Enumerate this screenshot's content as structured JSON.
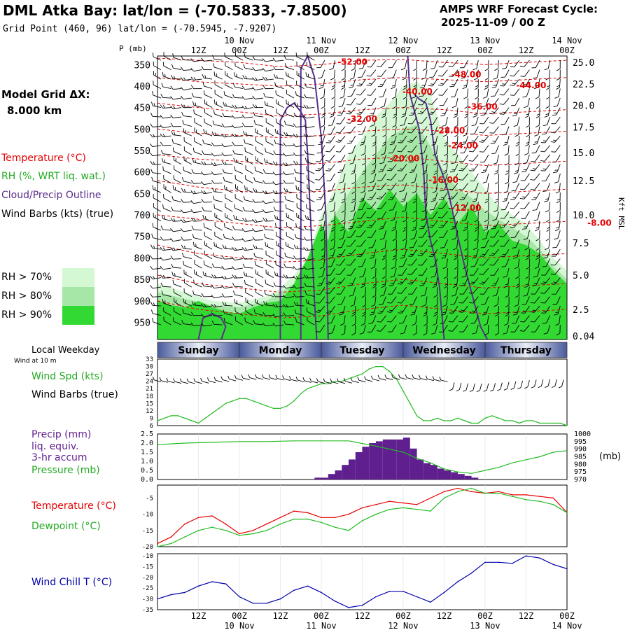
{
  "header": {
    "title": "DML Atka Bay:  lat/lon = (-70.5833, -7.8500)",
    "subtitle": "Grid Point (460, 96) lat/lon = (-70.5945, -7.9207)",
    "cycle_label": "AMPS WRF Forecast Cycle:",
    "cycle_value": "2025-11-09 / 00  Z"
  },
  "labels": {
    "grid_dx_title": "Model Grid ΔX:",
    "grid_dx_value": "8.000 km",
    "temperature": "Temperature (°C)",
    "rh": "RH (%, WRT liq. wat.)",
    "cloud": "Cloud/Precip Outline",
    "wind_barbs": "Wind Barbs (kts) (true)",
    "rh70": "RH > 70%",
    "rh80": "RH > 80%",
    "rh90": "RH > 90%",
    "p_unit": "P (mb)",
    "kft": "Kft MSL",
    "local_weekday": "Local Weekday",
    "wind_10m": "Wind at 10 m",
    "wind_spd": "Wind Spd (kts)",
    "wind_barbs_true": "Wind Barbs (true)",
    "precip1": "Precip (mm)",
    "precip2": "liq. equiv.",
    "precip3": "3-hr accum",
    "pressure": "Pressure (mb)",
    "mb_unit": "(mb)",
    "temp2": "Temperature (°C)",
    "dewpoint": "Dewpoint (°C)",
    "windchill": "Wind Chill T (°C)"
  },
  "colors": {
    "rh70": "#d4f7d4",
    "rh80": "#a6e6a6",
    "rh90": "#33d933",
    "temp": "#e60000",
    "cloud": "#5a2d8c",
    "precip": "#5f1f8f",
    "green_line": "#22bb22",
    "windchill": "#0000aa",
    "weekday_bar": "#4a5a9c"
  },
  "time_axis": {
    "top_dates": [
      "10 Nov",
      "11 Nov",
      "12 Nov",
      "13 Nov",
      "14 Nov"
    ],
    "hour_labels": [
      "12Z",
      "00Z",
      "12Z",
      "00Z",
      "12Z",
      "00Z",
      "12Z",
      "00Z",
      "12Z",
      "00Z"
    ]
  },
  "weekdays": [
    "Sunday",
    "Monday",
    "Tuesday",
    "Wednesday",
    "Thursday"
  ],
  "cross_section": {
    "pressure_ticks": [
      "350",
      "400",
      "450",
      "500",
      "550",
      "600",
      "650",
      "700",
      "750",
      "800",
      "850",
      "900",
      "950"
    ],
    "kft_ticks": [
      "25.0",
      "22.5",
      "20.0",
      "17.5",
      "15.0",
      "12.5",
      "10.0",
      "7.5",
      "5.0",
      "2.5",
      "0.04"
    ],
    "temp_labels": [
      "-52.00",
      "-48.00",
      "-44.00",
      "-40.00",
      "-36.00",
      "-32.00",
      "-28.00",
      "-24.00",
      "-20.00",
      "-16.00",
      "-12.00",
      "-8.00"
    ]
  },
  "chart_data": [
    {
      "type": "line",
      "title": "Wind Spd (kts)",
      "x_hours": [
        12,
        18,
        24,
        30,
        36,
        42,
        48,
        54,
        60,
        66,
        72,
        78,
        84,
        90,
        96,
        102,
        108,
        114,
        120
      ],
      "yticks": [
        "33",
        "30",
        "27",
        "24",
        "21",
        "18",
        "15",
        "12",
        "9",
        "6"
      ],
      "ylim": [
        6,
        33
      ],
      "series": [
        {
          "name": "Wind Spd (kts)",
          "x": [
            0,
            6,
            12,
            18,
            24,
            30,
            36,
            42,
            48,
            54,
            60,
            66,
            72,
            78,
            84,
            90,
            96,
            102,
            108,
            114,
            120,
            126,
            132,
            138,
            144,
            150,
            156,
            162,
            168,
            174,
            180,
            186,
            192,
            198,
            204,
            210,
            216,
            222,
            228,
            234,
            240,
            246,
            252,
            258,
            264,
            270,
            276,
            282,
            288,
            294,
            300,
            306,
            312,
            318,
            324,
            330,
            336,
            342,
            348,
            354,
            360
          ],
          "values": [
            8,
            9,
            10,
            10,
            9,
            8,
            7,
            9,
            11,
            13,
            15,
            16,
            17,
            17,
            16,
            15,
            14,
            13,
            13,
            14,
            16,
            19,
            21,
            22,
            23,
            23,
            24,
            24,
            25,
            26,
            27,
            29,
            30,
            30,
            28,
            25,
            20,
            15,
            10,
            8,
            8,
            9,
            8,
            8,
            9,
            8,
            7,
            7,
            9,
            10,
            9,
            8,
            8,
            7,
            8,
            8,
            7,
            7,
            7,
            7,
            6
          ]
        }
      ]
    },
    {
      "type": "bar",
      "title": "Precip (mm) liq. equiv. 3-hr accum / Pressure (mb)",
      "yticks_left": [
        "2.5",
        "2.0",
        "1.5",
        "1.0",
        "0.5",
        "0.0"
      ],
      "ylim_left": [
        0,
        2.5
      ],
      "yticks_right": [
        "1000",
        "995",
        "990",
        "985",
        "980",
        "975",
        "970"
      ],
      "ylim_right": [
        970,
        1000
      ],
      "precip": {
        "x": [
          138,
          144,
          150,
          156,
          162,
          168,
          174,
          180,
          186,
          192,
          198,
          204,
          210,
          216,
          222,
          228,
          234,
          240,
          246,
          252,
          258,
          264,
          270,
          276
        ],
        "values": [
          0.1,
          0.1,
          0.3,
          0.5,
          0.8,
          1.1,
          1.5,
          1.8,
          2.0,
          2.1,
          2.2,
          2.2,
          2.2,
          2.3,
          1.7,
          1.1,
          0.9,
          0.8,
          0.6,
          0.5,
          0.4,
          0.3,
          0.2,
          0.1
        ]
      },
      "pressure": {
        "x": [
          0,
          24,
          48,
          72,
          96,
          120,
          144,
          168,
          192,
          216,
          228,
          240,
          252,
          264,
          276,
          288,
          300,
          312,
          324,
          336,
          348,
          360
        ],
        "values": [
          993,
          994,
          994.5,
          995,
          995,
          995.5,
          995.5,
          995.5,
          992,
          988,
          984,
          981,
          977,
          975,
          974,
          976,
          978,
          981,
          983,
          985,
          988,
          989
        ]
      }
    },
    {
      "type": "line",
      "title": "Temperature / Dewpoint (°C)",
      "yticks": [
        "-5",
        "-10",
        "-15",
        "-20"
      ],
      "ylim": [
        -20,
        -1
      ],
      "series": [
        {
          "name": "Temperature (°C)",
          "x": [
            0,
            12,
            24,
            36,
            48,
            60,
            72,
            84,
            96,
            108,
            120,
            132,
            144,
            156,
            168,
            180,
            192,
            204,
            216,
            228,
            240,
            252,
            264,
            276,
            288,
            300,
            312,
            324,
            336,
            348,
            360
          ],
          "values": [
            -19,
            -17,
            -13,
            -11,
            -10.5,
            -13,
            -16,
            -15,
            -13,
            -11,
            -9,
            -9.5,
            -11,
            -11,
            -10,
            -8,
            -7,
            -6,
            -6.5,
            -7,
            -5,
            -3,
            -2,
            -3,
            -3.5,
            -3,
            -4,
            -4,
            -4.5,
            -5,
            -9.5
          ]
        },
        {
          "name": "Dewpoint (°C)",
          "x": [
            0,
            12,
            24,
            36,
            48,
            60,
            72,
            84,
            96,
            108,
            120,
            132,
            144,
            156,
            168,
            180,
            192,
            204,
            216,
            228,
            240,
            252,
            264,
            276,
            288,
            300,
            312,
            324,
            336,
            348,
            360
          ],
          "values": [
            -20,
            -19,
            -17,
            -15,
            -14,
            -15,
            -16.5,
            -16,
            -15,
            -13,
            -11.5,
            -11.5,
            -12.5,
            -14,
            -15,
            -12,
            -10,
            -8.5,
            -8,
            -8.5,
            -9,
            -5,
            -3,
            -2,
            -3.5,
            -3.5,
            -4.5,
            -5.5,
            -6,
            -7,
            -9.5
          ]
        }
      ]
    },
    {
      "type": "line",
      "title": "Wind Chill T (°C)",
      "yticks": [
        "-10",
        "-15",
        "-20",
        "-25",
        "-30",
        "-35"
      ],
      "ylim": [
        -35,
        -9
      ],
      "series": [
        {
          "name": "Wind Chill T (°C)",
          "x": [
            0,
            12,
            24,
            36,
            48,
            60,
            72,
            84,
            96,
            108,
            120,
            132,
            144,
            156,
            168,
            180,
            192,
            204,
            216,
            228,
            240,
            252,
            264,
            276,
            288,
            300,
            312,
            324,
            336,
            348,
            360
          ],
          "values": [
            -30,
            -28,
            -27,
            -24,
            -22,
            -23,
            -29,
            -32,
            -32,
            -30,
            -26,
            -24,
            -27,
            -31,
            -34,
            -33,
            -29,
            -26.5,
            -26.5,
            -29,
            -31.5,
            -27,
            -22,
            -18,
            -13,
            -13,
            -13.5,
            -10,
            -11,
            -14,
            -16
          ]
        }
      ]
    }
  ]
}
